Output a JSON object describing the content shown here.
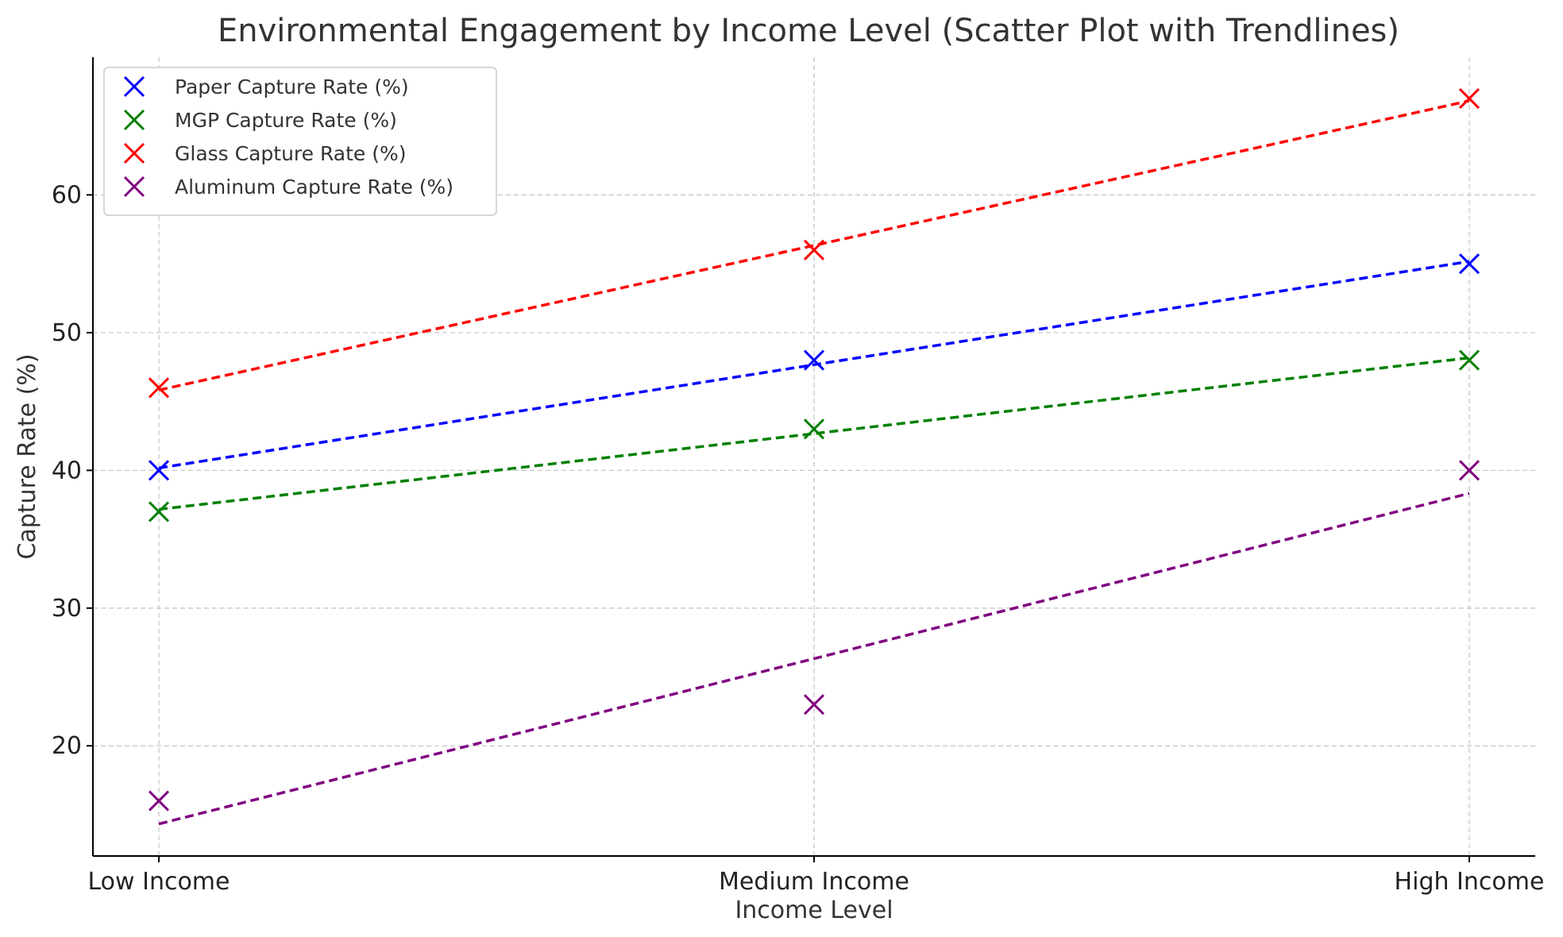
{
  "chart_data": {
    "type": "scatter",
    "title": "Environmental Engagement by Income Level (Scatter Plot with Trendlines)",
    "xlabel": "Income Level",
    "ylabel": "Capture Rate (%)",
    "categories": [
      "Low Income",
      "Medium Income",
      "High Income"
    ],
    "ylim": [
      12,
      70
    ],
    "yticks": [
      20,
      30,
      40,
      50,
      60
    ],
    "grid": true,
    "legend_position": "top-left",
    "marker": "x",
    "trendline_style": "dashed",
    "series": [
      {
        "name": "Paper Capture Rate (%)",
        "color": "#0000ff",
        "values": [
          40,
          48,
          55
        ],
        "trend": [
          40.17,
          47.67,
          55.17
        ]
      },
      {
        "name": "MGP Capture Rate (%)",
        "color": "#008000",
        "values": [
          37,
          43,
          48
        ],
        "trend": [
          37.17,
          42.67,
          48.17
        ]
      },
      {
        "name": "Glass Capture Rate (%)",
        "color": "#ff0000",
        "values": [
          46,
          56,
          67
        ],
        "trend": [
          45.83,
          56.33,
          66.83
        ]
      },
      {
        "name": "Aluminum Capture Rate (%)",
        "color": "#800080",
        "values": [
          16,
          23,
          40
        ],
        "trend": [
          14.33,
          26.33,
          38.33
        ]
      }
    ]
  }
}
